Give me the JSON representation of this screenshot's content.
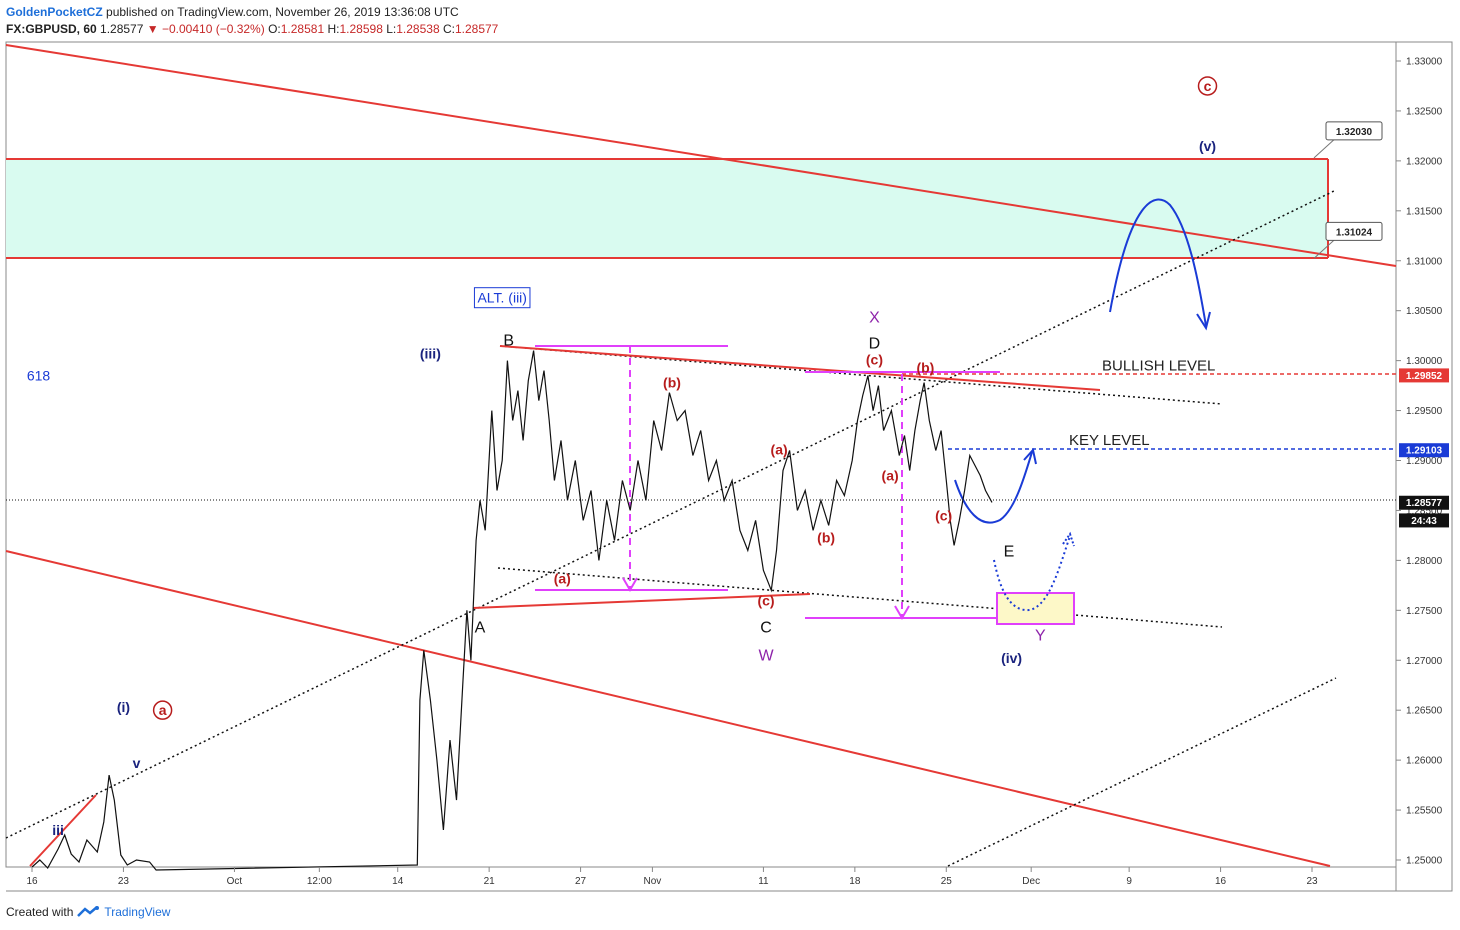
{
  "header": {
    "author": "GoldenPocketCZ",
    "published": "published on TradingView.com, November 26, 2019 13:36:08 UTC",
    "symbol": "FX:GBPUSD, 60",
    "last": "1.28577",
    "change": "▼ −0.00410 (−0.32%)",
    "o_label": "O:",
    "o": "1.28581",
    "h_label": "H:",
    "h": "1.28598",
    "l_label": "L:",
    "l": "1.28538",
    "c_label": "C:",
    "c": "1.28577"
  },
  "footer": {
    "created": "Created with",
    "brand": "TradingView",
    "logo_icon": "tradingview-logo-icon"
  },
  "chart_data": {
    "type": "line",
    "title": "",
    "xlabel": "",
    "ylabel": "",
    "ylim": [
      1.2495,
      1.3345
    ],
    "y_ticks": [
      "1.33000",
      "1.32500",
      "1.32000",
      "1.31500",
      "1.31000",
      "1.30500",
      "1.30000",
      "1.29500",
      "1.29000",
      "1.28500",
      "1.28000",
      "1.27500",
      "1.27000",
      "1.26500",
      "1.26000",
      "1.25500",
      "1.25000"
    ],
    "x_ticks": [
      {
        "label": "16",
        "x": 0
      },
      {
        "label": "23",
        "x": 7
      },
      {
        "label": "Oct",
        "x": 15.5
      },
      {
        "label": "12:00",
        "x": 22
      },
      {
        "label": "14",
        "x": 28
      },
      {
        "label": "21",
        "x": 35
      },
      {
        "label": "27",
        "x": 42
      },
      {
        "label": "Nov",
        "x": 47.5
      },
      {
        "label": "11",
        "x": 56
      },
      {
        "label": "18",
        "x": 63
      },
      {
        "label": "25",
        "x": 70
      },
      {
        "label": "Dec",
        "x": 76.5
      },
      {
        "label": "9",
        "x": 84
      },
      {
        "label": "16",
        "x": 91
      },
      {
        "label": "23",
        "x": 98
      }
    ],
    "grid": false,
    "colors": {
      "price": "#111111",
      "channel": "#e53935",
      "zone": "#d9fbf0",
      "wave": "#1a237e",
      "sub": "#b71c1c",
      "magenta": "#e040fb",
      "blue": "#1a3bd6",
      "purple": "#8e24aa"
    },
    "series": [
      {
        "values": [
          [
            0,
            1.2493
          ],
          [
            0.6,
            1.25
          ],
          [
            1.2,
            1.2492
          ],
          [
            2,
            1.2511
          ],
          [
            2.5,
            1.2525
          ],
          [
            3,
            1.2506
          ],
          [
            3.6,
            1.2498
          ],
          [
            4.2,
            1.252
          ],
          [
            5,
            1.2508
          ],
          [
            5.5,
            1.2538
          ],
          [
            5.9,
            1.2585
          ],
          [
            6.3,
            1.256
          ],
          [
            6.8,
            1.2505
          ],
          [
            7.3,
            1.2495
          ],
          [
            8,
            1.25
          ],
          [
            9,
            1.2498
          ],
          [
            9.5,
            1.249
          ],
          [
            29.5,
            1.2495
          ],
          [
            29.7,
            1.266
          ],
          [
            30,
            1.271
          ],
          [
            30.5,
            1.266
          ],
          [
            31,
            1.26
          ],
          [
            31.5,
            1.253
          ],
          [
            32,
            1.262
          ],
          [
            32.5,
            1.256
          ],
          [
            33,
            1.268
          ],
          [
            33.3,
            1.275
          ],
          [
            33.6,
            1.27
          ],
          [
            34,
            1.282
          ],
          [
            34.3,
            1.286
          ],
          [
            34.7,
            1.283
          ],
          [
            35.2,
            1.295
          ],
          [
            35.6,
            1.287
          ],
          [
            36,
            1.29
          ],
          [
            36.4,
            1.3
          ],
          [
            36.8,
            1.294
          ],
          [
            37.2,
            1.297
          ],
          [
            37.6,
            1.292
          ],
          [
            38,
            1.298
          ],
          [
            38.4,
            1.301
          ],
          [
            38.8,
            1.296
          ],
          [
            39.2,
            1.299
          ],
          [
            39.6,
            1.294
          ],
          [
            40,
            1.288
          ],
          [
            40.5,
            1.292
          ],
          [
            41,
            1.286
          ],
          [
            41.6,
            1.29
          ],
          [
            42.2,
            1.284
          ],
          [
            42.8,
            1.287
          ],
          [
            43.4,
            1.28
          ],
          [
            44,
            1.286
          ],
          [
            44.6,
            1.282
          ],
          [
            45.2,
            1.288
          ],
          [
            45.8,
            1.285
          ],
          [
            46.4,
            1.29
          ],
          [
            47,
            1.286
          ],
          [
            47.6,
            1.294
          ],
          [
            48.2,
            1.291
          ],
          [
            48.8,
            1.2968
          ],
          [
            49.4,
            1.294
          ],
          [
            50,
            1.295
          ],
          [
            50.6,
            1.2905
          ],
          [
            51.2,
            1.293
          ],
          [
            51.8,
            1.288
          ],
          [
            52.4,
            1.29
          ],
          [
            53,
            1.286
          ],
          [
            53.6,
            1.288
          ],
          [
            54.2,
            1.283
          ],
          [
            54.8,
            1.281
          ],
          [
            55.4,
            1.284
          ],
          [
            56,
            1.279
          ],
          [
            56.6,
            1.277
          ],
          [
            57,
            1.281
          ],
          [
            57.5,
            1.289
          ],
          [
            58,
            1.291
          ],
          [
            58.6,
            1.285
          ],
          [
            59.2,
            1.287
          ],
          [
            59.8,
            1.283
          ],
          [
            60.4,
            1.286
          ],
          [
            61,
            1.2835
          ],
          [
            61.6,
            1.288
          ],
          [
            62.2,
            1.2865
          ],
          [
            62.8,
            1.29
          ],
          [
            63.2,
            1.294
          ],
          [
            63.6,
            1.2965
          ],
          [
            64,
            1.2985
          ],
          [
            64.4,
            1.295
          ],
          [
            64.8,
            1.2975
          ],
          [
            65.2,
            1.293
          ],
          [
            65.8,
            1.295
          ],
          [
            66.4,
            1.2905
          ],
          [
            66.8,
            1.2925
          ],
          [
            67.2,
            1.289
          ],
          [
            67.6,
            1.293
          ],
          [
            68,
            1.296
          ],
          [
            68.3,
            1.2978
          ],
          [
            68.7,
            1.294
          ],
          [
            69.2,
            1.291
          ],
          [
            69.6,
            1.293
          ],
          [
            70,
            1.288
          ],
          [
            70.3,
            1.284
          ],
          [
            70.6,
            1.2815
          ],
          [
            71,
            1.284
          ],
          [
            71.4,
            1.287
          ],
          [
            71.8,
            1.2905
          ],
          [
            72.2,
            1.2895
          ],
          [
            72.6,
            1.2885
          ],
          [
            73,
            1.287
          ],
          [
            73.5,
            1.2858
          ]
        ]
      }
    ],
    "price_labels": [
      {
        "text": "1.29852",
        "y": 1.29852,
        "color": "#e53935"
      },
      {
        "text": "1.29103",
        "y": 1.29103,
        "color": "#1a3bd6"
      },
      {
        "text": "1.28577",
        "y": 1.28577,
        "color": "#111111"
      },
      {
        "text": "24:43",
        "y": 1.284,
        "color": "#111111"
      }
    ],
    "callouts": [
      {
        "text": "1.32030",
        "y": 1.3203
      },
      {
        "text": "1.31024",
        "y": 1.31024
      }
    ],
    "level_labels": [
      {
        "text": "BULLISH LEVEL",
        "y": 1.29852
      },
      {
        "text": "KEY LEVEL",
        "y": 1.29103
      }
    ],
    "annotations": [
      {
        "text": "c",
        "x": 90,
        "y": 1.327,
        "color": "#b71c1c",
        "circle": true
      },
      {
        "text": "(v)",
        "x": 90,
        "y": 1.321,
        "color": "#1a237e"
      },
      {
        "text": "ALT. (iii)",
        "x": 36,
        "y": 1.3058,
        "color": "#1a3bd6",
        "box": true
      },
      {
        "text": "B",
        "x": 36.5,
        "y": 1.3015,
        "color": "#111111"
      },
      {
        "text": "(iii)",
        "x": 30.5,
        "y": 1.3002,
        "color": "#1a237e"
      },
      {
        "text": "X",
        "x": 64.5,
        "y": 1.3038,
        "color": "#8e24aa"
      },
      {
        "text": "D",
        "x": 64.5,
        "y": 1.3012,
        "color": "#111111"
      },
      {
        "text": "(c)",
        "x": 64.5,
        "y": 1.2996,
        "color": "#b71c1c"
      },
      {
        "text": "(b)",
        "x": 68.4,
        "y": 1.2988,
        "color": "#b71c1c"
      },
      {
        "text": "(b)",
        "x": 49,
        "y": 1.2973,
        "color": "#b71c1c"
      },
      {
        "text": "(a)",
        "x": 57.2,
        "y": 1.2906,
        "color": "#b71c1c"
      },
      {
        "text": "(a)",
        "x": 65.7,
        "y": 1.288,
        "color": "#b71c1c"
      },
      {
        "text": "(c)",
        "x": 69.8,
        "y": 1.284,
        "color": "#b71c1c"
      },
      {
        "text": "(b)",
        "x": 60.8,
        "y": 1.2818,
        "color": "#b71c1c"
      },
      {
        "text": "(a)",
        "x": 40.6,
        "y": 1.2777,
        "color": "#b71c1c"
      },
      {
        "text": "(c)",
        "x": 56.2,
        "y": 1.2755,
        "color": "#b71c1c"
      },
      {
        "text": "A",
        "x": 34.3,
        "y": 1.2728,
        "color": "#111111"
      },
      {
        "text": "C",
        "x": 56.2,
        "y": 1.2728,
        "color": "#111111"
      },
      {
        "text": "W",
        "x": 56.2,
        "y": 1.27,
        "color": "#8e24aa"
      },
      {
        "text": "E",
        "x": 74.8,
        "y": 1.2804,
        "color": "#111111"
      },
      {
        "text": "Y",
        "x": 77.2,
        "y": 1.272,
        "color": "#8e24aa"
      },
      {
        "text": "(iv)",
        "x": 75,
        "y": 1.2697,
        "color": "#1a237e"
      },
      {
        "text": "(i)",
        "x": 7,
        "y": 1.2648,
        "color": "#1a237e"
      },
      {
        "text": "a",
        "x": 10,
        "y": 1.2645,
        "color": "#b71c1c",
        "circle": true
      },
      {
        "text": "v",
        "x": 8,
        "y": 1.2592,
        "color": "#1a237e"
      },
      {
        "text": "iii",
        "x": 2,
        "y": 1.2525,
        "color": "#1a237e"
      },
      {
        "text": "618",
        "x": 0.5,
        "y": 1.298,
        "color": "#1a3bd6"
      }
    ]
  }
}
